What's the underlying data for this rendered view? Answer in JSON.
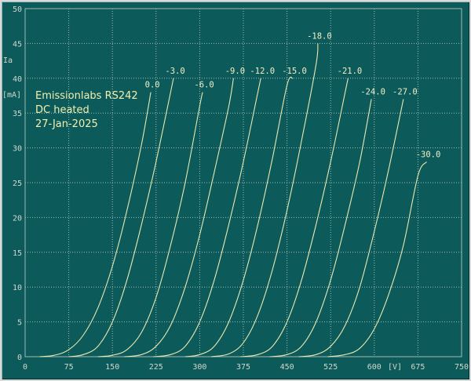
{
  "chart_data": {
    "type": "line",
    "title": "",
    "annotation_lines": [
      "Emissionlabs RS242",
      "DC heated",
      "27-Jan-2025"
    ],
    "xlabel": "[V]",
    "ylabel_lines": [
      "Ia",
      "[mA]"
    ],
    "xlim": [
      0,
      750
    ],
    "ylim": [
      0,
      50
    ],
    "xticks": [
      0,
      75,
      150,
      225,
      300,
      375,
      450,
      525,
      600,
      675,
      750
    ],
    "yticks": [
      0,
      5,
      10,
      15,
      20,
      25,
      30,
      35,
      40,
      45,
      50
    ],
    "grid": true,
    "series": [
      {
        "name": "0.0",
        "points": [
          [
            25,
            0
          ],
          [
            50,
            0.2
          ],
          [
            75,
            1
          ],
          [
            100,
            3.1
          ],
          [
            125,
            7
          ],
          [
            150,
            13
          ],
          [
            175,
            21
          ],
          [
            200,
            30.5
          ],
          [
            216,
            38
          ]
        ]
      },
      {
        "name": "-3.0",
        "points": [
          [
            75,
            0
          ],
          [
            100,
            0.3
          ],
          [
            125,
            1.5
          ],
          [
            150,
            5
          ],
          [
            175,
            11
          ],
          [
            200,
            19
          ],
          [
            225,
            28
          ],
          [
            255,
            40
          ]
        ]
      },
      {
        "name": "-6.0",
        "points": [
          [
            125,
            0
          ],
          [
            150,
            0.2
          ],
          [
            175,
            1
          ],
          [
            200,
            3.5
          ],
          [
            225,
            8.5
          ],
          [
            250,
            16
          ],
          [
            275,
            25
          ],
          [
            300,
            36
          ],
          [
            305,
            38
          ]
        ]
      },
      {
        "name": "-9.0",
        "points": [
          [
            170,
            0
          ],
          [
            200,
            0.3
          ],
          [
            225,
            1.5
          ],
          [
            250,
            4.5
          ],
          [
            275,
            10
          ],
          [
            300,
            17.5
          ],
          [
            325,
            26.5
          ],
          [
            350,
            36
          ],
          [
            358,
            40
          ]
        ]
      },
      {
        "name": "-12.0",
        "points": [
          [
            220,
            0
          ],
          [
            250,
            0.3
          ],
          [
            275,
            1.5
          ],
          [
            300,
            5
          ],
          [
            325,
            11
          ],
          [
            350,
            19
          ],
          [
            375,
            28
          ],
          [
            400,
            38
          ],
          [
            405,
            40
          ]
        ]
      },
      {
        "name": "-15.0",
        "points": [
          [
            275,
            0
          ],
          [
            300,
            0.3
          ],
          [
            325,
            1.5
          ],
          [
            350,
            5
          ],
          [
            375,
            11
          ],
          [
            400,
            19
          ],
          [
            425,
            28.5
          ],
          [
            450,
            39
          ],
          [
            460,
            40
          ]
        ]
      },
      {
        "name": "-18.0",
        "points": [
          [
            320,
            0
          ],
          [
            350,
            0.4
          ],
          [
            375,
            2
          ],
          [
            400,
            6
          ],
          [
            425,
            12.5
          ],
          [
            450,
            21
          ],
          [
            475,
            31
          ],
          [
            500,
            42
          ],
          [
            503,
            45
          ]
        ]
      },
      {
        "name": "-21.0",
        "points": [
          [
            370,
            0
          ],
          [
            400,
            0.3
          ],
          [
            425,
            1.5
          ],
          [
            450,
            5
          ],
          [
            475,
            11
          ],
          [
            500,
            19
          ],
          [
            525,
            28
          ],
          [
            550,
            38
          ],
          [
            555,
            40
          ]
        ]
      },
      {
        "name": "-24.0",
        "points": [
          [
            420,
            0
          ],
          [
            450,
            0.3
          ],
          [
            475,
            1.5
          ],
          [
            500,
            5
          ],
          [
            525,
            11
          ],
          [
            550,
            19
          ],
          [
            575,
            28
          ],
          [
            595,
            37
          ]
        ]
      },
      {
        "name": "-27.0",
        "points": [
          [
            470,
            0
          ],
          [
            500,
            0.3
          ],
          [
            525,
            1.5
          ],
          [
            550,
            4.5
          ],
          [
            575,
            10
          ],
          [
            600,
            18
          ],
          [
            625,
            27
          ],
          [
            650,
            37
          ]
        ]
      },
      {
        "name": "-30.0",
        "points": [
          [
            520,
            0
          ],
          [
            550,
            0.3
          ],
          [
            575,
            1.2
          ],
          [
            600,
            4
          ],
          [
            625,
            9
          ],
          [
            650,
            16
          ],
          [
            675,
            26
          ],
          [
            690,
            28
          ]
        ]
      }
    ]
  },
  "colors": {
    "background": "#0c5a5a",
    "grid": "#9fb9b5",
    "curve": "#e8e8b0",
    "label": "#f0f0c8"
  }
}
